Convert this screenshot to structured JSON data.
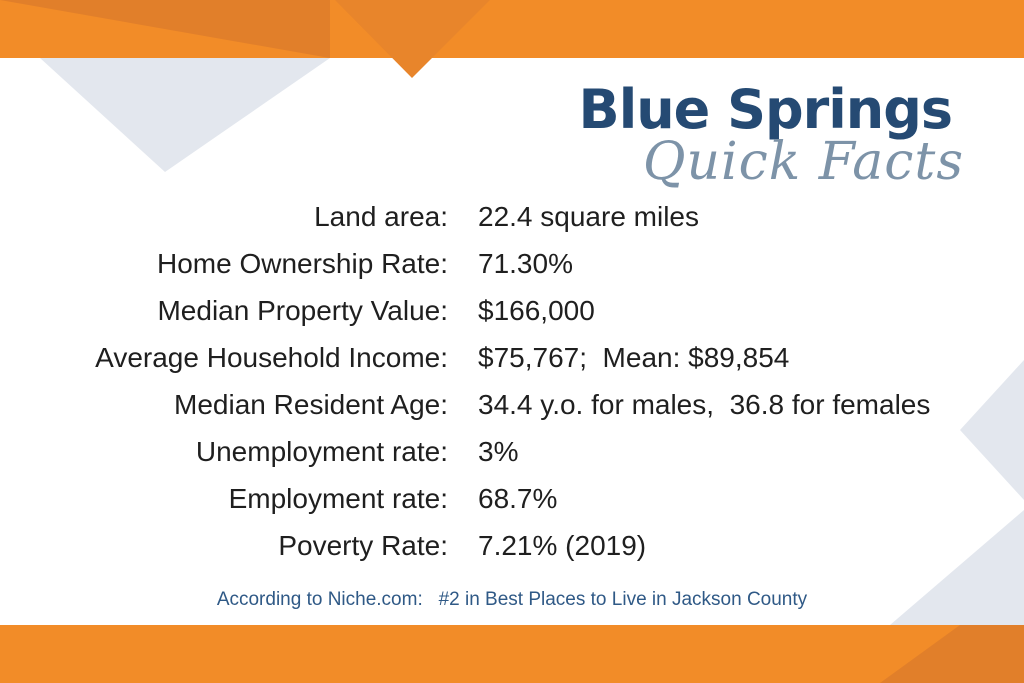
{
  "title": "Blue Springs",
  "subtitle": "Quick Facts",
  "facts": [
    {
      "label": "Land area:",
      "value": "22.4 square miles"
    },
    {
      "label": "Home Ownership Rate:",
      "value": "71.30%"
    },
    {
      "label": "Median Property Value:",
      "value": "$166,000"
    },
    {
      "label": "Average Household Income:",
      "value": "$75,767;  Mean: $89,854"
    },
    {
      "label": "Median Resident Age:",
      "value": "34.4 y.o. for males,  36.8 for females"
    },
    {
      "label": "Unemployment rate:",
      "value": "3%"
    },
    {
      "label": "Employment rate:",
      "value": "68.7%"
    },
    {
      "label": "Poverty Rate:",
      "value": "7.21% (2019)"
    }
  ],
  "source": "According to Niche.com:   #2 in Best Places to Live in Jackson County",
  "colors": {
    "orange": "#f28c28",
    "navy": "#254a73",
    "slate": "#7d93a8",
    "gray_triangle": "#e3e7ee"
  }
}
